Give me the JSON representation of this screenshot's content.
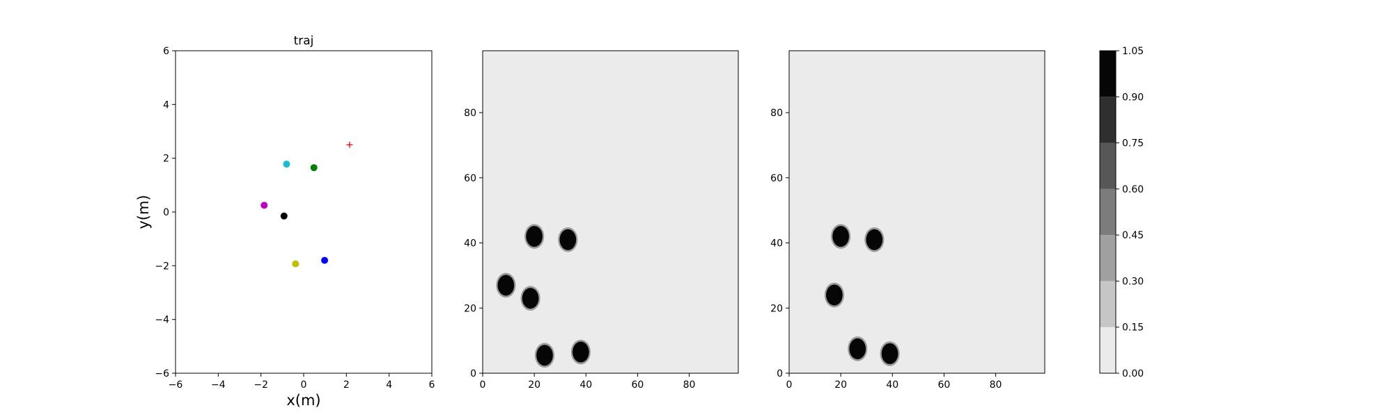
{
  "chart_data": [
    {
      "type": "scatter",
      "title": "traj",
      "xlabel": "x(m)",
      "ylabel": "y(m)",
      "xlim": [
        -6,
        6
      ],
      "ylim": [
        -6,
        6
      ],
      "xticks": [
        "−6",
        "−4",
        "−2",
        "0",
        "2",
        "4",
        "6"
      ],
      "yticks": [
        "−6",
        "−4",
        "−2",
        "0",
        "2",
        "4",
        "6"
      ],
      "grid": false,
      "points": [
        {
          "x": -0.8,
          "y": 1.78,
          "color": "#17becf",
          "marker": "circle"
        },
        {
          "x": 0.48,
          "y": 1.65,
          "color": "#008000",
          "marker": "circle"
        },
        {
          "x": -1.85,
          "y": 0.25,
          "color": "#bf00bf",
          "marker": "circle"
        },
        {
          "x": -0.92,
          "y": -0.15,
          "color": "#000000",
          "marker": "circle"
        },
        {
          "x": -0.38,
          "y": -1.93,
          "color": "#bfbf00",
          "marker": "circle"
        },
        {
          "x": 0.98,
          "y": -1.8,
          "color": "#0000ff",
          "marker": "circle"
        },
        {
          "x": 2.15,
          "y": 2.5,
          "color": "#ff0000",
          "marker": "plus"
        }
      ]
    },
    {
      "type": "heatmap",
      "xlim": [
        0,
        99
      ],
      "ylim": [
        0,
        99
      ],
      "xticks": [
        "0",
        "20",
        "40",
        "60",
        "80"
      ],
      "yticks": [
        "0",
        "20",
        "40",
        "60",
        "80"
      ],
      "background_value": 0.05,
      "blobs": [
        {
          "cx": 20,
          "cy": 42,
          "value": 1.0
        },
        {
          "cx": 33,
          "cy": 41,
          "value": 1.0
        },
        {
          "cx": 9,
          "cy": 27,
          "value": 1.0
        },
        {
          "cx": 18.5,
          "cy": 23,
          "value": 1.0
        },
        {
          "cx": 24,
          "cy": 5.5,
          "value": 1.0
        },
        {
          "cx": 38,
          "cy": 6.5,
          "value": 1.0
        }
      ]
    },
    {
      "type": "heatmap",
      "xlim": [
        0,
        99
      ],
      "ylim": [
        0,
        99
      ],
      "xticks": [
        "0",
        "20",
        "40",
        "60",
        "80"
      ],
      "yticks": [
        "0",
        "20",
        "40",
        "60",
        "80"
      ],
      "background_value": 0.05,
      "blobs": [
        {
          "cx": 20,
          "cy": 42,
          "value": 1.0
        },
        {
          "cx": 33,
          "cy": 41,
          "value": 1.0
        },
        {
          "cx": 17.5,
          "cy": 24,
          "value": 1.0
        },
        {
          "cx": 26.5,
          "cy": 7.5,
          "value": 1.0
        },
        {
          "cx": 39,
          "cy": 6,
          "value": 1.0
        }
      ]
    }
  ],
  "colorbar": {
    "levels": [
      0.0,
      0.15,
      0.3,
      0.45,
      0.6,
      0.75,
      0.9,
      1.05
    ],
    "tick_labels": [
      "0.00",
      "0.15",
      "0.30",
      "0.45",
      "0.60",
      "0.75",
      "0.90",
      "1.05"
    ],
    "colors": [
      "#ebebeb",
      "#c6c6c6",
      "#a0a0a0",
      "#7c7c7c",
      "#575757",
      "#2f2f2f",
      "#060606"
    ]
  }
}
